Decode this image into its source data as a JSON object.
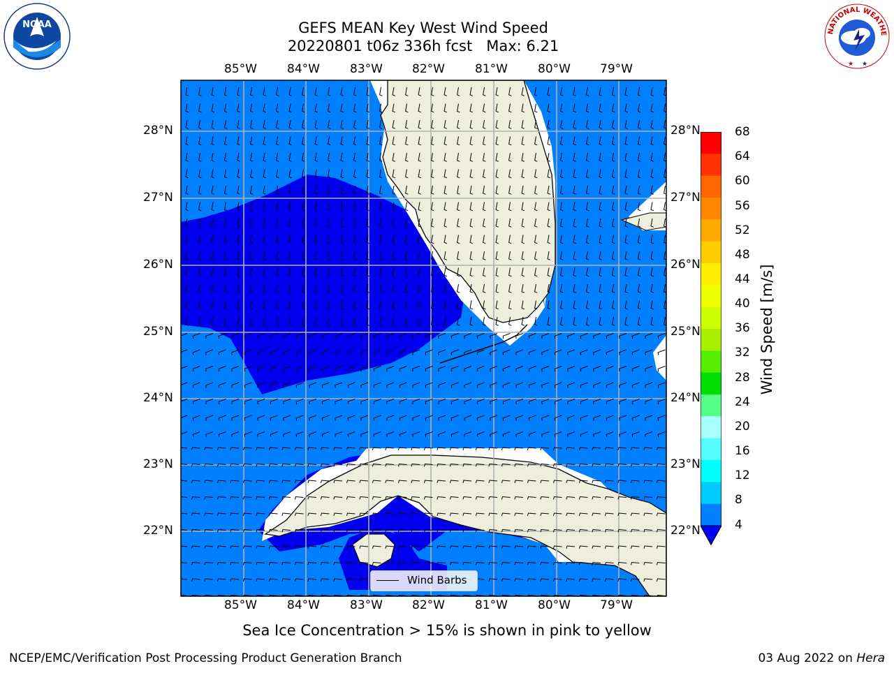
{
  "title": {
    "line1": "GEFS MEAN Key West Wind Speed",
    "line2": "20220801 t06z 336h fcst",
    "max_text": "Max: 6.21"
  },
  "logos": {
    "noaa": "NOAA",
    "nws_ring": "NATIONAL WEATHER SERVICE"
  },
  "map": {
    "lon_labels": [
      "85°W",
      "84°W",
      "83°W",
      "82°W",
      "81°W",
      "80°W",
      "79°W"
    ],
    "lat_labels": [
      "28°N",
      "27°N",
      "26°N",
      "25°N",
      "24°N",
      "23°N",
      "22°N"
    ],
    "legend_label": "Wind Barbs",
    "colors": {
      "band_4_8": "#0080ff",
      "band_lt4": "#0000ee",
      "land": "#eeeedd",
      "grid": "#b0b0b0"
    }
  },
  "colorbar": {
    "label": "Wind Speed [m/s]",
    "ticks": [
      "68",
      "64",
      "60",
      "56",
      "52",
      "48",
      "44",
      "40",
      "36",
      "32",
      "28",
      "24",
      "20",
      "16",
      "12",
      "8",
      "4"
    ],
    "colors": [
      "#ff0000",
      "#ff3300",
      "#ff6600",
      "#ff8800",
      "#ffaa00",
      "#ffcc00",
      "#ffee00",
      "#eeff00",
      "#ccff00",
      "#aaee00",
      "#55ee00",
      "#00dd00",
      "#55ff88",
      "#aaffff",
      "#55ffff",
      "#00ffff",
      "#00ccff",
      "#0080ff"
    ],
    "extend_color": "#0000ff"
  },
  "caption": "Sea Ice Concentration > 15% is shown in pink to yellow",
  "footer": {
    "left": "NCEP/EMC/Verification Post Processing Product Generation Branch",
    "right_prefix": "03 Aug 2022 on ",
    "right_italic": "Hera"
  }
}
